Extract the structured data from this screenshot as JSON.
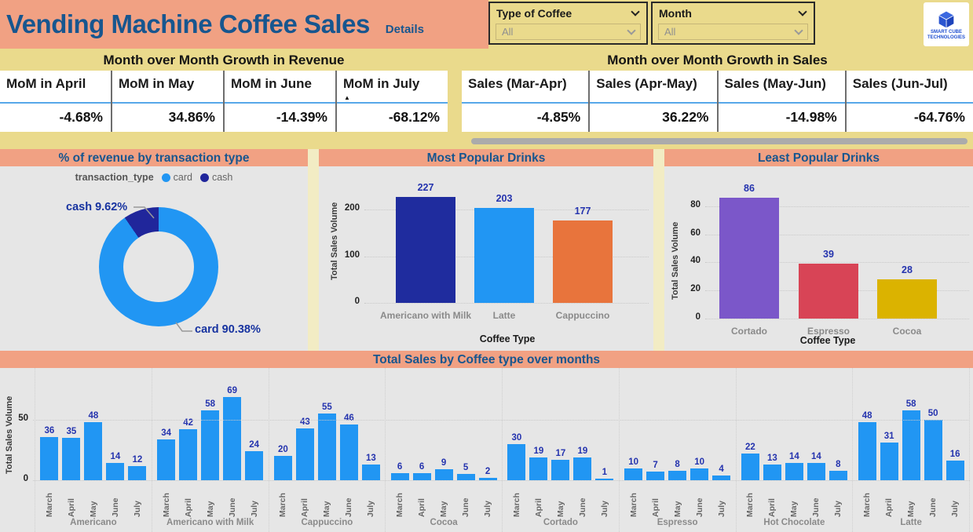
{
  "header": {
    "title": "Vending Machine Coffee Sales",
    "details_label": "Details",
    "slicers": [
      {
        "label": "Type of Coffee",
        "value": "All"
      },
      {
        "label": "Month",
        "value": "All"
      }
    ],
    "logo_lines": [
      "SMART CUBE",
      "TECHNOLOGIES"
    ]
  },
  "revenue_table": {
    "title": "Month over Month Growth in Revenue",
    "columns": [
      "MoM in April",
      "MoM in May",
      "MoM in June",
      "MoM in July"
    ],
    "values": [
      "-4.68%",
      "34.86%",
      "-14.39%",
      "-68.12%"
    ],
    "sorted_column_index": 3,
    "sort_icon": "ascending-triangle"
  },
  "sales_table": {
    "title": "Month over Month Growth in Sales",
    "columns": [
      "Sales (Mar-Apr)",
      "Sales (Apr-May)",
      "Sales (May-Jun)",
      "Sales (Jun-Jul)"
    ],
    "values": [
      "-4.85%",
      "36.22%",
      "-14.98%",
      "-64.76%"
    ],
    "sorted_column_index": -1
  },
  "chart_data": [
    {
      "type": "pie",
      "title": "% of revenue by transaction type",
      "legend_title": "transaction_type",
      "legend_position": "top",
      "slices": [
        {
          "label": "card",
          "value": 90.38,
          "color": "#2196F3"
        },
        {
          "label": "cash",
          "value": 9.62,
          "color": "#20269B"
        }
      ],
      "callouts": [
        "cash 9.62%",
        "card 90.38%"
      ]
    },
    {
      "type": "bar",
      "title": "Most Popular Drinks",
      "categories": [
        "Americano with Milk",
        "Latte",
        "Cappuccino"
      ],
      "values": [
        227,
        203,
        177
      ],
      "colors": [
        "#1F2C9E",
        "#2196F3",
        "#E8743C"
      ],
      "xlabel": "Coffee Type",
      "ylabel": "Total Sales Volume",
      "yticks": [
        0,
        100,
        200
      ],
      "ylim": [
        0,
        250
      ],
      "grid": "dotted"
    },
    {
      "type": "bar",
      "title": "Least Popular Drinks",
      "categories": [
        "Cortado",
        "Espresso",
        "Cocoa"
      ],
      "values": [
        86,
        39,
        28
      ],
      "colors": [
        "#7B57C9",
        "#D84456",
        "#DBB300"
      ],
      "xlabel": "Coffee Type",
      "ylabel": "Total Sales Volume",
      "yticks": [
        0,
        20,
        40,
        60,
        80
      ],
      "ylim": [
        0,
        95
      ],
      "grid": "dotted"
    },
    {
      "type": "bar",
      "title": "Total Sales by Coffee type over months",
      "ylabel": "Total Sales Volume",
      "yticks": [
        0,
        50
      ],
      "ylim": [
        0,
        92
      ],
      "bar_color": "#2196F3",
      "months": [
        "March",
        "April",
        "May",
        "June",
        "July"
      ],
      "groups": [
        {
          "name": "Americano",
          "values": [
            36,
            35,
            48,
            14,
            12
          ]
        },
        {
          "name": "Americano with Milk",
          "values": [
            34,
            42,
            58,
            69,
            24
          ]
        },
        {
          "name": "Cappuccino",
          "values": [
            20,
            43,
            55,
            46,
            13
          ]
        },
        {
          "name": "Cocoa",
          "values": [
            6,
            6,
            9,
            5,
            2
          ]
        },
        {
          "name": "Cortado",
          "values": [
            30,
            19,
            17,
            19,
            1
          ]
        },
        {
          "name": "Espresso",
          "values": [
            10,
            7,
            8,
            10,
            4
          ]
        },
        {
          "name": "Hot Chocolate",
          "values": [
            22,
            13,
            14,
            14,
            8
          ]
        },
        {
          "name": "Latte",
          "values": [
            48,
            31,
            58,
            50,
            16
          ]
        }
      ]
    }
  ],
  "colors": {
    "salmon_band": "#F1A183",
    "yellow_background": "#EADA8C",
    "title_blue": "#17568F",
    "chart_background": "#E6E6E6",
    "bar_blue": "#2196F3",
    "data_label_navy": "#2433AE",
    "header_underline_blue": "#57A8E9"
  }
}
